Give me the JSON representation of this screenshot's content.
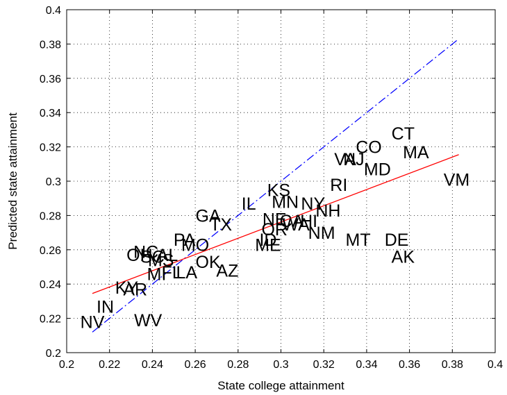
{
  "chart_data": {
    "type": "scatter",
    "title": "",
    "xlabel": "State college attainment",
    "ylabel": "Predicted state attainment",
    "xlim": [
      0.2,
      0.4
    ],
    "ylim": [
      0.2,
      0.4
    ],
    "xticks": [
      "0.2",
      "0.22",
      "0.24",
      "0.26",
      "0.28",
      "0.3",
      "0.32",
      "0.34",
      "0.36",
      "0.38",
      "0.4"
    ],
    "yticks": [
      "0.2",
      "0.22",
      "0.24",
      "0.26",
      "0.28",
      "0.3",
      "0.32",
      "0.34",
      "0.36",
      "0.38",
      "0.4"
    ],
    "grid": true,
    "points": [
      {
        "label": "NV",
        "x": 0.212,
        "y": 0.218
      },
      {
        "label": "IN",
        "x": 0.218,
        "y": 0.227
      },
      {
        "label": "WV",
        "x": 0.238,
        "y": 0.219
      },
      {
        "label": "KY",
        "x": 0.228,
        "y": 0.238
      },
      {
        "label": "AR",
        "x": 0.232,
        "y": 0.237
      },
      {
        "label": "MI",
        "x": 0.242,
        "y": 0.246
      },
      {
        "label": "FL",
        "x": 0.249,
        "y": 0.247
      },
      {
        "label": "LA",
        "x": 0.256,
        "y": 0.247
      },
      {
        "label": "AZ",
        "x": 0.275,
        "y": 0.248
      },
      {
        "label": "OK",
        "x": 0.266,
        "y": 0.253
      },
      {
        "label": "NC",
        "x": 0.237,
        "y": 0.259
      },
      {
        "label": "OH",
        "x": 0.234,
        "y": 0.257
      },
      {
        "label": "SC",
        "x": 0.24,
        "y": 0.256
      },
      {
        "label": "AL",
        "x": 0.247,
        "y": 0.257
      },
      {
        "label": "MS",
        "x": 0.244,
        "y": 0.254
      },
      {
        "label": "PA",
        "x": 0.255,
        "y": 0.266
      },
      {
        "label": "MO",
        "x": 0.26,
        "y": 0.263
      },
      {
        "label": "GA",
        "x": 0.266,
        "y": 0.28
      },
      {
        "label": "TX",
        "x": 0.272,
        "y": 0.275
      },
      {
        "label": "IL",
        "x": 0.285,
        "y": 0.287
      },
      {
        "label": "KS",
        "x": 0.299,
        "y": 0.295
      },
      {
        "label": "MN",
        "x": 0.302,
        "y": 0.288
      },
      {
        "label": "NY",
        "x": 0.315,
        "y": 0.287
      },
      {
        "label": "NH",
        "x": 0.322,
        "y": 0.283
      },
      {
        "label": "RI",
        "x": 0.327,
        "y": 0.298
      },
      {
        "label": "NE",
        "x": 0.297,
        "y": 0.278
      },
      {
        "label": "CA",
        "x": 0.305,
        "y": 0.277
      },
      {
        "label": "HI",
        "x": 0.313,
        "y": 0.277
      },
      {
        "label": "OR",
        "x": 0.297,
        "y": 0.272
      },
      {
        "label": "WA",
        "x": 0.307,
        "y": 0.275
      },
      {
        "label": "ID",
        "x": 0.294,
        "y": 0.266
      },
      {
        "label": "ME",
        "x": 0.294,
        "y": 0.263
      },
      {
        "label": "NM",
        "x": 0.319,
        "y": 0.27
      },
      {
        "label": "MT",
        "x": 0.336,
        "y": 0.266
      },
      {
        "label": "DE",
        "x": 0.354,
        "y": 0.266
      },
      {
        "label": "AK",
        "x": 0.357,
        "y": 0.256
      },
      {
        "label": "MD",
        "x": 0.345,
        "y": 0.307
      },
      {
        "label": "NJ",
        "x": 0.334,
        "y": 0.313
      },
      {
        "label": "VA",
        "x": 0.33,
        "y": 0.313
      },
      {
        "label": "CO",
        "x": 0.341,
        "y": 0.32
      },
      {
        "label": "CT",
        "x": 0.357,
        "y": 0.328
      },
      {
        "label": "MA",
        "x": 0.363,
        "y": 0.317
      },
      {
        "label": "VM",
        "x": 0.382,
        "y": 0.301
      }
    ],
    "fit_line": {
      "color": "#ff0000",
      "style": "solid",
      "x": [
        0.212,
        0.383
      ],
      "y": [
        0.2345,
        0.3155
      ]
    },
    "identity_line": {
      "color": "#0000ff",
      "style": "dash-dot",
      "x": [
        0.212,
        0.383
      ],
      "y": [
        0.212,
        0.383
      ]
    }
  }
}
